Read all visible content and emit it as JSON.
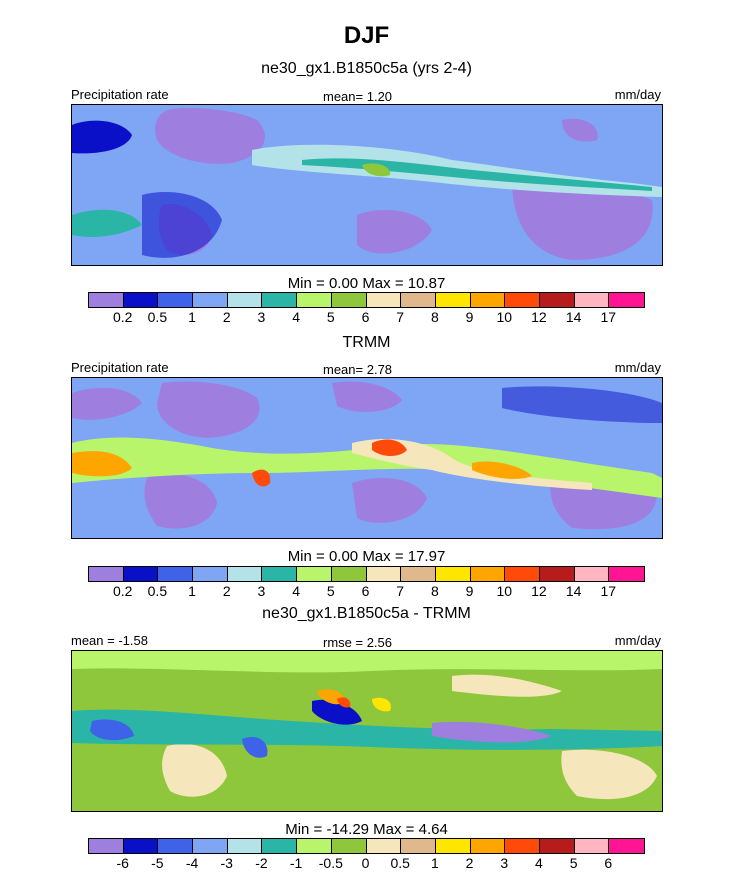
{
  "title": "DJF",
  "colors": {
    "panel_scale": [
      "#9e7fe0",
      "#0a10c8",
      "#3f63e8",
      "#7fa6f5",
      "#b3e2e8",
      "#2ab5a6",
      "#b8f56a",
      "#8ec63c",
      "#f5e6bc",
      "#dfb98c",
      "#ffe600",
      "#ffa500",
      "#ff4a0a",
      "#b71c1c",
      "#ffb6c1",
      "#ff1493"
    ],
    "diff_scale": [
      "#9e7fe0",
      "#0a10c8",
      "#3f63e8",
      "#7fa6f5",
      "#b3e2e8",
      "#2ab5a6",
      "#b8f56a",
      "#8ec63c",
      "#f5e6bc",
      "#dfb98c",
      "#ffe600",
      "#ffa500",
      "#ff4a0a",
      "#b71c1c",
      "#ffb6c1",
      "#ff1493"
    ]
  },
  "chart_data": [
    {
      "type": "heatmap",
      "title": "ne30_gx1.B1850c5a (yrs 2-4)",
      "left_label": "Precipitation rate",
      "center_label": "mean=   1.20",
      "units": "mm/day",
      "min": 0.0,
      "max": 10.87,
      "minmax_text": "Min =   0.00 Max =  10.87",
      "contour_levels": [
        "0.2",
        "0.5",
        "1",
        "2",
        "3",
        "4",
        "5",
        "6",
        "7",
        "8",
        "9",
        "10",
        "12",
        "14",
        "17"
      ]
    },
    {
      "type": "heatmap",
      "title": "TRMM",
      "left_label": "Precipitation rate",
      "center_label": "mean=   2.78",
      "units": "mm/day",
      "min": 0.0,
      "max": 17.97,
      "minmax_text": "Min =   0.00 Max =  17.97",
      "contour_levels": [
        "0.2",
        "0.5",
        "1",
        "2",
        "3",
        "4",
        "5",
        "6",
        "7",
        "8",
        "9",
        "10",
        "12",
        "14",
        "17"
      ]
    },
    {
      "type": "heatmap",
      "title": "ne30_gx1.B1850c5a - TRMM",
      "left_label": "mean =  -1.58",
      "center_label": "rmse =    2.56",
      "units": "mm/day",
      "min": -14.29,
      "max": 4.64,
      "minmax_text": "Min = -14.29 Max =   4.64",
      "contour_levels": [
        "-6",
        "-5",
        "-4",
        "-3",
        "-2",
        "-1",
        "-0.5",
        "0",
        "0.5",
        "1",
        "2",
        "3",
        "4",
        "5",
        "6"
      ]
    }
  ]
}
